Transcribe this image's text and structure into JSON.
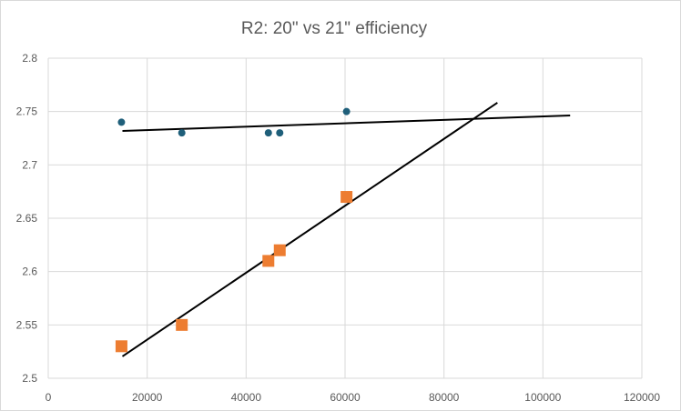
{
  "chart_data": {
    "type": "scatter",
    "title": "R2: 20\" vs 21\" efficiency",
    "xlabel": "",
    "ylabel": "",
    "xlim": [
      0,
      120000
    ],
    "ylim": [
      2.5,
      2.8
    ],
    "x_ticks": [
      "0",
      "20000",
      "40000",
      "60000",
      "80000",
      "100000",
      "120000"
    ],
    "y_ticks": [
      "2.5",
      "2.55",
      "2.6",
      "2.65",
      "2.7",
      "2.75",
      "2.8"
    ],
    "grid": true,
    "legend": "none",
    "series": [
      {
        "color": "#1f5f7a",
        "marker": "circle",
        "points": [
          {
            "x": 14800,
            "y": 2.74
          },
          {
            "x": 27000,
            "y": 2.73
          },
          {
            "x": 44500,
            "y": 2.73
          },
          {
            "x": 46800,
            "y": 2.73
          },
          {
            "x": 60300,
            "y": 2.75
          }
        ],
        "trendline": {
          "x": [
            15000,
            105500
          ],
          "y": [
            2.7318,
            2.7463
          ]
        }
      },
      {
        "color": "#ed7d31",
        "marker": "square",
        "points": [
          {
            "x": 14800,
            "y": 2.53
          },
          {
            "x": 27000,
            "y": 2.55
          },
          {
            "x": 44500,
            "y": 2.61
          },
          {
            "x": 46800,
            "y": 2.62
          },
          {
            "x": 60300,
            "y": 2.67
          }
        ],
        "trendline": {
          "x": [
            15000,
            90800
          ],
          "y": [
            2.5205,
            2.7583
          ]
        }
      }
    ]
  }
}
